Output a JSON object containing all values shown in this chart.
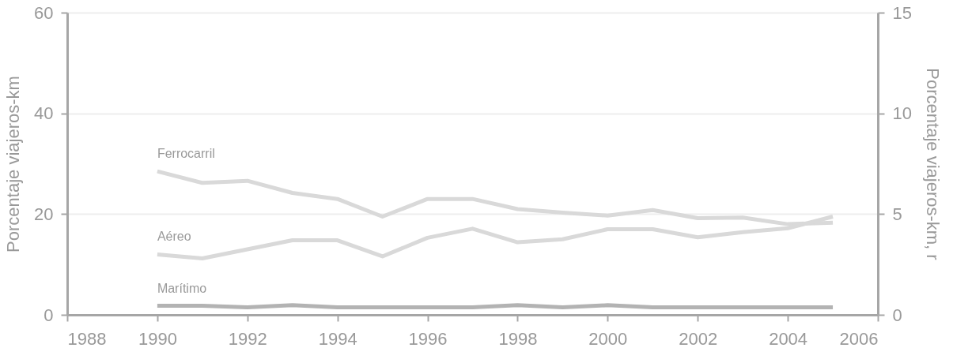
{
  "chart_data": {
    "type": "line",
    "ylabel": "Porcentaje viajeros-km",
    "y2label": "Porcentaje viajeros-km, r",
    "x": [
      1990,
      1991,
      1992,
      1993,
      1994,
      1995,
      1996,
      1997,
      1998,
      1999,
      2000,
      2001,
      2002,
      2003,
      2004,
      2005
    ],
    "series": [
      {
        "name": "Ferrocarril",
        "color": "#d9d9d9",
        "values": [
          28.5,
          26.2,
          26.6,
          24.2,
          23,
          19.5,
          23,
          23,
          21,
          20.3,
          19.7,
          20.8,
          19.2,
          19.3,
          18,
          18.3
        ]
      },
      {
        "name": "Aéreo",
        "color": "#d9d9d9",
        "values": [
          12,
          11.2,
          13,
          14.8,
          14.8,
          11.6,
          15.3,
          17.1,
          14.4,
          15,
          17,
          17,
          15.4,
          16.4,
          17.2,
          19.5
        ]
      },
      {
        "name": "Marítimo",
        "color": "#b3b3b3",
        "values": [
          1.8,
          1.8,
          1.5,
          1.9,
          1.5,
          1.5,
          1.5,
          1.5,
          1.9,
          1.5,
          1.9,
          1.5,
          1.5,
          1.5,
          1.5,
          1.5
        ]
      }
    ],
    "xlim": [
      1988,
      2006
    ],
    "xticks": [
      1988,
      1990,
      1992,
      1994,
      1996,
      1998,
      2000,
      2002,
      2004,
      2006
    ],
    "ylim": [
      0,
      60
    ],
    "yticks": [
      0,
      20,
      40,
      60
    ],
    "y2lim": [
      0,
      15
    ],
    "y2ticks": [
      0,
      5,
      10,
      15
    ],
    "grid": "y",
    "legend": false,
    "marker": "none",
    "line_style": "solid"
  }
}
